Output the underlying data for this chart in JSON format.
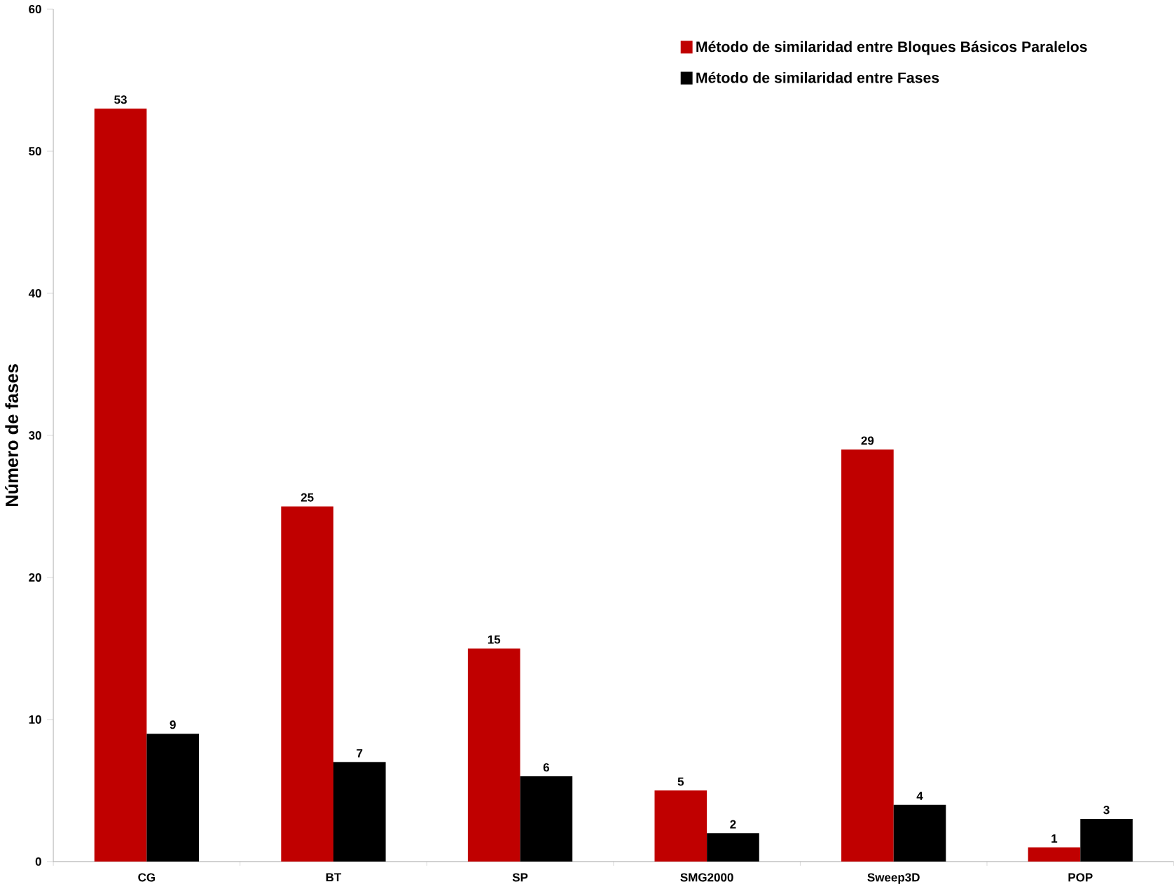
{
  "chart_data": {
    "type": "bar",
    "ylabel": "Número de fases",
    "categories": [
      "CG",
      "BT",
      "SP",
      "SMG2000",
      "Sweep3D",
      "POP"
    ],
    "series": [
      {
        "name": "Método de similaridad entre Bloques Básicos Paralelos",
        "color": "#c00000",
        "values": [
          53,
          25,
          15,
          5,
          29,
          1
        ]
      },
      {
        "name": "Método de similaridad entre Fases",
        "color": "#000000",
        "values": [
          9,
          7,
          6,
          2,
          4,
          3
        ]
      }
    ],
    "ylim": [
      0,
      60
    ],
    "yticks": [
      0,
      10,
      20,
      30,
      40,
      50,
      60
    ],
    "grid": false,
    "legend": "top right",
    "data_labels": true
  }
}
